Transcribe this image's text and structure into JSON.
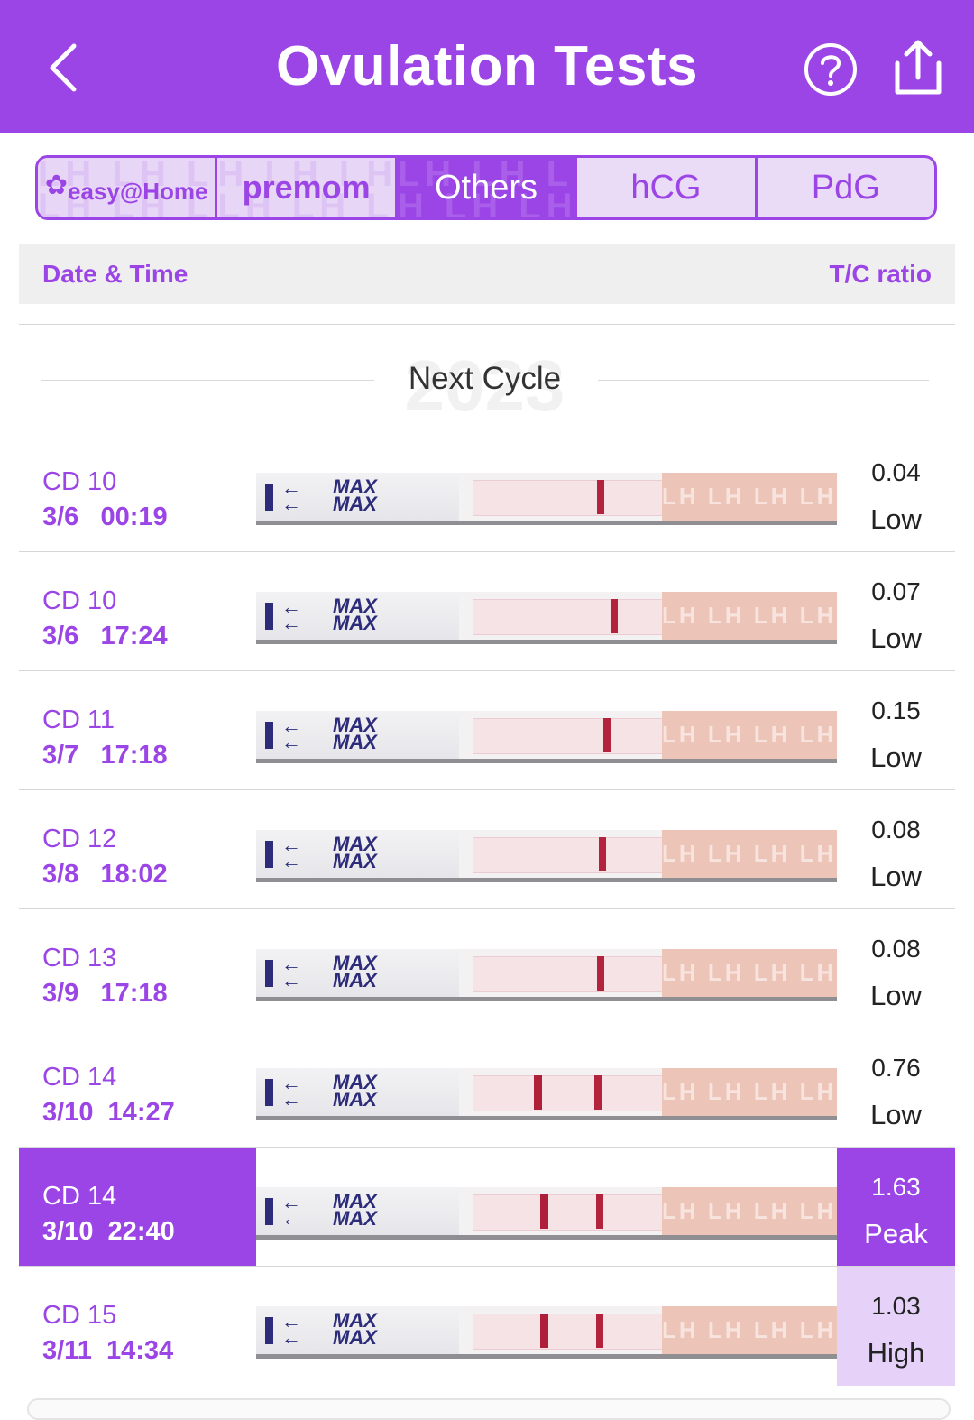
{
  "header": {
    "title": "Ovulation Tests",
    "back_icon": "chevron-left-icon",
    "help_icon": "question-circle-icon",
    "share_icon": "share-upload-icon",
    "bg_color": "#9b45e6"
  },
  "tabs": [
    {
      "label": "easy@Home",
      "kind": "brand"
    },
    {
      "label": "premom",
      "kind": "brand"
    },
    {
      "label": "Others",
      "kind": "active"
    },
    {
      "label": "hCG",
      "kind": "normal"
    },
    {
      "label": "PdG",
      "kind": "normal"
    }
  ],
  "table": {
    "col_date": "Date & Time",
    "col_ratio": "T/C ratio"
  },
  "cycle_divider": {
    "label": "Next Cycle",
    "year": "2023"
  },
  "rows": [
    {
      "cd": "CD 10",
      "datetime": "3/6   00:19",
      "ratio": "0.04",
      "level": "Low",
      "state": "normal"
    },
    {
      "cd": "CD 10",
      "datetime": "3/6   17:24",
      "ratio": "0.07",
      "level": "Low",
      "state": "normal"
    },
    {
      "cd": "CD 11",
      "datetime": "3/7   17:18",
      "ratio": "0.15",
      "level": "Low",
      "state": "normal"
    },
    {
      "cd": "CD 12",
      "datetime": "3/8   18:02",
      "ratio": "0.08",
      "level": "Low",
      "state": "normal"
    },
    {
      "cd": "CD 13",
      "datetime": "3/9   17:18",
      "ratio": "0.08",
      "level": "Low",
      "state": "normal"
    },
    {
      "cd": "CD 14",
      "datetime": "3/10  14:27",
      "ratio": "0.76",
      "level": "Low",
      "state": "normal"
    },
    {
      "cd": "CD 14",
      "datetime": "3/10  22:40",
      "ratio": "1.63",
      "level": "Peak",
      "state": "peak"
    },
    {
      "cd": "CD 15",
      "datetime": "3/11  14:34",
      "ratio": "1.03",
      "level": "High",
      "state": "high"
    }
  ],
  "strip_text": {
    "max": "MAX",
    "wick": "LH LH LH"
  },
  "colors": {
    "accent": "#9b45e6",
    "high_bg": "#e6d2f8",
    "test_line": "#b4233d",
    "wick": "#edc4b8"
  }
}
